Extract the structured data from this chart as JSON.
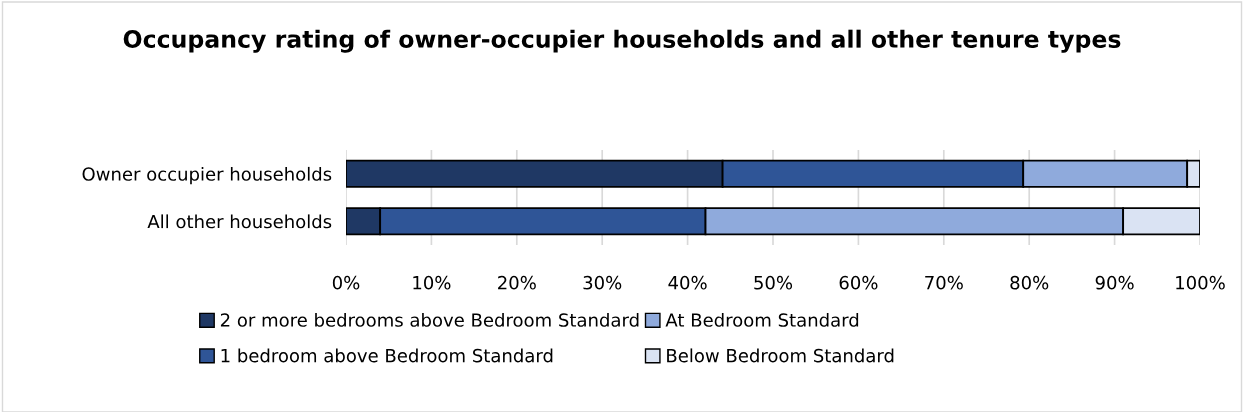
{
  "chart_data": {
    "type": "bar",
    "orientation": "horizontal",
    "stacked": true,
    "title": "Occupancy rating of owner-occupier households and all other tenure types",
    "categories": [
      "Owner occupier households",
      "All other households"
    ],
    "series": [
      {
        "name": "2 or more bedrooms above Bedroom Standard",
        "color": "#1f3864",
        "values": [
          44.1,
          4.0
        ]
      },
      {
        "name": "1 bedroom above Bedroom Standard",
        "color": "#2f5597",
        "values": [
          35.2,
          38.1
        ]
      },
      {
        "name": "At Bedroom Standard",
        "color": "#8faadc",
        "values": [
          19.2,
          48.9
        ]
      },
      {
        "name": "Below Bedroom Standard",
        "color": "#dae3f3",
        "values": [
          1.5,
          9.0
        ]
      }
    ],
    "xlim": [
      0,
      100
    ],
    "xticks": [
      {
        "value": 0,
        "label": "0%"
      },
      {
        "value": 10,
        "label": "10%"
      },
      {
        "value": 20,
        "label": "20%"
      },
      {
        "value": 30,
        "label": "30%"
      },
      {
        "value": 40,
        "label": "40%"
      },
      {
        "value": 50,
        "label": "50%"
      },
      {
        "value": 60,
        "label": "60%"
      },
      {
        "value": 70,
        "label": "70%"
      },
      {
        "value": 80,
        "label": "80%"
      },
      {
        "value": 90,
        "label": "90%"
      },
      {
        "value": 100,
        "label": "100%"
      }
    ],
    "grid": "x",
    "legend": "bottom"
  }
}
